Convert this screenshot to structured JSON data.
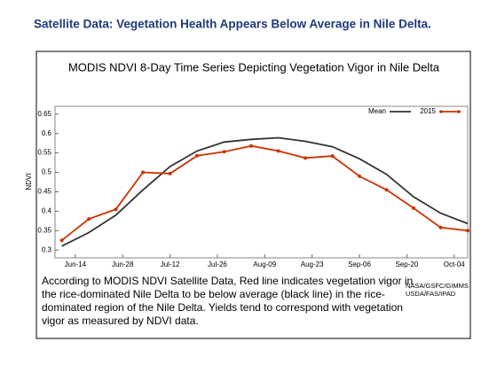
{
  "header": {
    "title": "Satellite Data: Vegetation Health Appears Below Average in Nile Delta."
  },
  "chart_data": {
    "type": "line",
    "title": "MODIS NDVI 8-Day Time Series Depicting Vegetation Vigor in Nile Delta",
    "y_label": "NDVI",
    "x": [
      "Jun-10",
      "Jun-18",
      "Jun-26",
      "Jul-04",
      "Jul-12",
      "Jul-20",
      "Jul-28",
      "Aug-05",
      "Aug-13",
      "Aug-21",
      "Aug-29",
      "Sep-06",
      "Sep-14",
      "Sep-22",
      "Sep-30",
      "Oct-08"
    ],
    "series": [
      {
        "name": "Mean",
        "color": "#333333",
        "markers": false,
        "values": [
          0.31,
          0.345,
          0.39,
          0.455,
          0.515,
          0.555,
          0.578,
          0.585,
          0.589,
          0.58,
          0.566,
          0.535,
          0.495,
          0.437,
          0.395,
          0.368
        ]
      },
      {
        "name": "2015",
        "color": "#cc3300",
        "markers": true,
        "values": [
          0.325,
          0.38,
          0.405,
          0.5,
          0.497,
          0.543,
          0.553,
          0.568,
          0.555,
          0.537,
          0.542,
          0.49,
          0.455,
          0.408,
          0.358,
          0.35
        ]
      }
    ],
    "xlim": [
      "Jun-08",
      "Oct-08"
    ],
    "xticks": [
      "Jun-14",
      "Jun-28",
      "Jul-12",
      "Jul-26",
      "Aug-09",
      "Aug-23",
      "Sep-06",
      "Sep-20",
      "Oct-04"
    ],
    "ylim": [
      0.28,
      0.67
    ],
    "yticks": [
      0.3,
      0.35,
      0.4,
      0.45,
      0.5,
      0.55,
      0.6,
      0.65
    ],
    "grid": false,
    "legend": "top-right"
  },
  "caption": [
    "According to MODIS NDVI Satellite Data, Red line indicates vegetation vigor in",
    "the rice-dominated Nile Delta to be below average (black line) in the rice-",
    "dominated region of the Nile Delta.  Yields tend to correspond with vegetation",
    "vigor as measured  by NDVI data."
  ],
  "credit": [
    "NASA/GSFC/GIMMS",
    "USDA/FAS/IPAD"
  ]
}
